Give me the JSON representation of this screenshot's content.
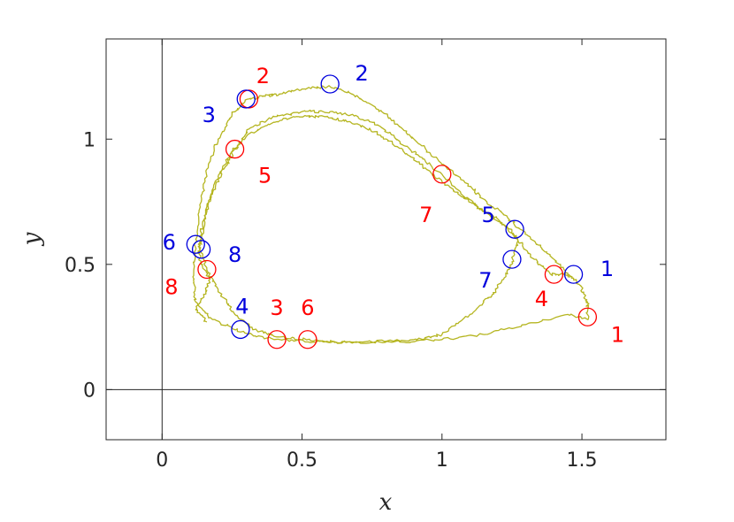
{
  "chart_data": {
    "type": "line",
    "xlabel": "x",
    "ylabel": "y",
    "xlim": [
      -0.2,
      1.8
    ],
    "ylim": [
      -0.2,
      1.4
    ],
    "xticks": [
      0,
      0.5,
      1,
      1.5
    ],
    "xtick_labels": [
      "0",
      "0.5",
      "1",
      "1.5"
    ],
    "yticks": [
      0,
      0.5,
      1
    ],
    "ytick_labels": [
      "0",
      "0.5",
      "1"
    ],
    "reference_lines": [
      {
        "orientation": "vertical",
        "value": 0
      },
      {
        "orientation": "horizontal",
        "value": 0
      }
    ],
    "grid": false,
    "legend": "none",
    "colors": {
      "trajectory": "#b5b520",
      "red": "#ff0000",
      "blue": "#0000dd",
      "axis": "#262626"
    },
    "series": [
      {
        "values": [
          [
            1.46,
            0.45
          ],
          [
            1.4,
            0.52
          ],
          [
            1.34,
            0.58
          ],
          [
            1.28,
            0.64
          ],
          [
            1.22,
            0.7
          ],
          [
            1.15,
            0.76
          ],
          [
            1.08,
            0.83
          ],
          [
            1.0,
            0.9
          ],
          [
            0.92,
            0.98
          ],
          [
            0.84,
            1.06
          ],
          [
            0.76,
            1.13
          ],
          [
            0.68,
            1.18
          ],
          [
            0.6,
            1.21
          ],
          [
            0.5,
            1.2
          ],
          [
            0.42,
            1.18
          ],
          [
            0.36,
            1.17
          ],
          [
            0.31,
            1.16
          ],
          [
            0.25,
            1.1
          ],
          [
            0.2,
            1.0
          ],
          [
            0.16,
            0.88
          ],
          [
            0.14,
            0.75
          ],
          [
            0.12,
            0.6
          ],
          [
            0.11,
            0.45
          ],
          [
            0.12,
            0.35
          ],
          [
            0.18,
            0.28
          ],
          [
            0.28,
            0.23
          ],
          [
            0.4,
            0.2
          ],
          [
            0.55,
            0.19
          ],
          [
            0.7,
            0.19
          ],
          [
            0.85,
            0.19
          ],
          [
            1.0,
            0.2
          ],
          [
            1.15,
            0.22
          ],
          [
            1.3,
            0.26
          ],
          [
            1.45,
            0.3
          ],
          [
            1.52,
            0.28
          ],
          [
            1.52,
            0.35
          ],
          [
            1.49,
            0.42
          ],
          [
            1.45,
            0.46
          ],
          [
            1.39,
            0.46
          ],
          [
            1.33,
            0.52
          ],
          [
            1.27,
            0.6
          ],
          [
            1.22,
            0.66
          ],
          [
            1.15,
            0.71
          ],
          [
            1.08,
            0.77
          ],
          [
            1.0,
            0.86
          ],
          [
            0.92,
            0.93
          ],
          [
            0.85,
            0.99
          ],
          [
            0.78,
            1.05
          ],
          [
            0.7,
            1.09
          ],
          [
            0.6,
            1.11
          ],
          [
            0.5,
            1.11
          ],
          [
            0.4,
            1.09
          ],
          [
            0.31,
            1.04
          ],
          [
            0.26,
            0.96
          ],
          [
            0.22,
            0.88
          ],
          [
            0.18,
            0.78
          ],
          [
            0.15,
            0.68
          ],
          [
            0.13,
            0.58
          ],
          [
            0.16,
            0.48
          ],
          [
            0.2,
            0.4
          ],
          [
            0.26,
            0.3
          ],
          [
            0.33,
            0.24
          ],
          [
            0.42,
            0.21
          ],
          [
            0.52,
            0.2
          ],
          [
            0.62,
            0.19
          ],
          [
            0.75,
            0.19
          ],
          [
            0.9,
            0.2
          ],
          [
            1.0,
            0.22
          ],
          [
            1.1,
            0.3
          ],
          [
            1.18,
            0.38
          ],
          [
            1.22,
            0.44
          ],
          [
            1.25,
            0.51
          ],
          [
            1.27,
            0.6
          ],
          [
            1.25,
            0.63
          ],
          [
            1.2,
            0.68
          ],
          [
            1.14,
            0.72
          ],
          [
            1.07,
            0.77
          ],
          [
            1.0,
            0.83
          ],
          [
            0.92,
            0.9
          ],
          [
            0.84,
            0.97
          ],
          [
            0.76,
            1.03
          ],
          [
            0.67,
            1.07
          ],
          [
            0.58,
            1.09
          ],
          [
            0.48,
            1.09
          ],
          [
            0.38,
            1.06
          ],
          [
            0.3,
            1.01
          ],
          [
            0.25,
            0.95
          ],
          [
            0.2,
            0.85
          ],
          [
            0.16,
            0.73
          ],
          [
            0.14,
            0.6
          ],
          [
            0.13,
            0.55
          ],
          [
            0.14,
            0.5
          ],
          [
            0.17,
            0.44
          ],
          [
            0.15,
            0.38
          ],
          [
            0.12,
            0.32
          ],
          [
            0.16,
            0.27
          ]
        ]
      }
    ],
    "red_markers": [
      {
        "label": "1",
        "x": 1.52,
        "y": 0.29
      },
      {
        "label": "2",
        "x": 0.31,
        "y": 1.16
      },
      {
        "label": "3",
        "x": 0.41,
        "y": 0.2
      },
      {
        "label": "4",
        "x": 1.4,
        "y": 0.46
      },
      {
        "label": "5",
        "x": 0.26,
        "y": 0.96
      },
      {
        "label": "6",
        "x": 0.52,
        "y": 0.2
      },
      {
        "label": "7",
        "x": 1.0,
        "y": 0.86
      },
      {
        "label": "8",
        "x": 0.16,
        "y": 0.48
      }
    ],
    "blue_markers": [
      {
        "label": "1",
        "x": 1.47,
        "y": 0.46
      },
      {
        "label": "2",
        "x": 0.6,
        "y": 1.22
      },
      {
        "label": "3",
        "x": 0.3,
        "y": 1.16
      },
      {
        "label": "4",
        "x": 0.28,
        "y": 0.24
      },
      {
        "label": "5",
        "x": 1.26,
        "y": 0.64
      },
      {
        "label": "6",
        "x": 0.12,
        "y": 0.58
      },
      {
        "label": "7",
        "x": 1.25,
        "y": 0.52
      },
      {
        "label": "8",
        "x": 0.14,
        "y": 0.56
      }
    ]
  }
}
